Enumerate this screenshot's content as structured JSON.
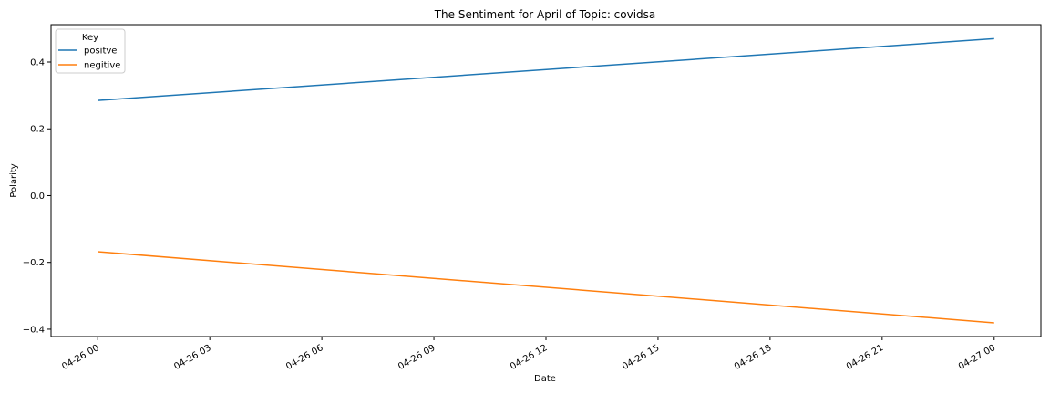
{
  "chart_data": {
    "type": "line",
    "title": "The Sentiment for April of Topic: covidsa",
    "xlabel": "Date",
    "ylabel": "Polarity",
    "x": [
      "04-26 00",
      "04-27 00"
    ],
    "x_hours": [
      0,
      24
    ],
    "xlim_hours": [
      -1.25,
      25.25
    ],
    "xticks": [
      {
        "label": "04-26 00",
        "hour": 0
      },
      {
        "label": "04-26 03",
        "hour": 3
      },
      {
        "label": "04-26 06",
        "hour": 6
      },
      {
        "label": "04-26 09",
        "hour": 9
      },
      {
        "label": "04-26 12",
        "hour": 12
      },
      {
        "label": "04-26 15",
        "hour": 15
      },
      {
        "label": "04-26 18",
        "hour": 18
      },
      {
        "label": "04-26 21",
        "hour": 21
      },
      {
        "label": "04-27 00",
        "hour": 24
      }
    ],
    "ylim": [
      -0.422,
      0.512
    ],
    "yticks": [
      {
        "label": "0.4",
        "value": 0.4
      },
      {
        "label": "0.2",
        "value": 0.2
      },
      {
        "label": "0.0",
        "value": 0.0
      },
      {
        "label": "−0.2",
        "value": -0.2
      },
      {
        "label": "−0.4",
        "value": -0.4
      }
    ],
    "grid": false,
    "legend": {
      "title": "Key",
      "placement": "top-left"
    },
    "series": [
      {
        "name": "positve",
        "color": "#1f77b4",
        "values": [
          0.285,
          0.47
        ]
      },
      {
        "name": "negitive",
        "color": "#ff7f0e",
        "values": [
          -0.168,
          -0.381
        ]
      }
    ]
  }
}
